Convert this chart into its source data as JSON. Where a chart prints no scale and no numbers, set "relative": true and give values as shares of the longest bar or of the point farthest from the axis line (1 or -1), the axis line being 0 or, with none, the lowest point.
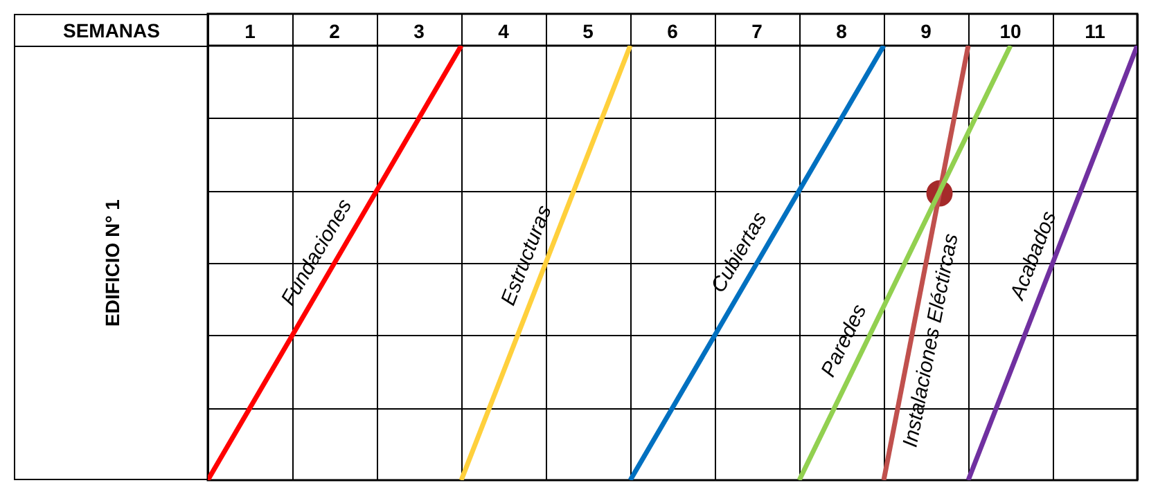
{
  "chart_data": {
    "type": "line",
    "xlabel": "SEMANAS",
    "annotations": [
      "EDIFICIO N° 1"
    ],
    "relative": true,
    "grid": true,
    "line_style": "solid",
    "xlim": [
      0,
      11
    ],
    "xticks": [
      {
        "value": 0,
        "label": null
      },
      {
        "value": 0.5,
        "label": "1"
      },
      {
        "value": 1,
        "label": null
      },
      {
        "value": 1.5,
        "label": "2"
      },
      {
        "value": 2,
        "label": null
      },
      {
        "value": 2.5,
        "label": "3"
      },
      {
        "value": 3,
        "label": null
      },
      {
        "value": 3.5,
        "label": "4"
      },
      {
        "value": 4,
        "label": null
      },
      {
        "value": 4.5,
        "label": "5"
      },
      {
        "value": 5,
        "label": null
      },
      {
        "value": 5.5,
        "label": "6"
      },
      {
        "value": 6,
        "label": null
      },
      {
        "value": 6.5,
        "label": "7"
      },
      {
        "value": 7,
        "label": null
      },
      {
        "value": 7.5,
        "label": "8"
      },
      {
        "value": 8,
        "label": null
      },
      {
        "value": 8.5,
        "label": "9"
      },
      {
        "value": 9,
        "label": null
      },
      {
        "value": 9.5,
        "label": "10"
      },
      {
        "value": 10,
        "label": null
      },
      {
        "value": 10.5,
        "label": "11"
      },
      {
        "value": 11,
        "label": null
      }
    ],
    "series": [
      {
        "name": "Fundaciones",
        "color": "#ff0000",
        "x": [
          0,
          3
        ],
        "values": [
          0,
          1
        ]
      },
      {
        "name": "Estructuras",
        "color": "#ffd03c",
        "x": [
          3,
          5
        ],
        "values": [
          0,
          1
        ]
      },
      {
        "name": "Cubiertas",
        "color": "#0070c0",
        "x": [
          5,
          8
        ],
        "values": [
          0,
          1
        ]
      },
      {
        "name": "Paredes",
        "color": "#92d050",
        "x": [
          7,
          9.5
        ],
        "values": [
          0,
          1
        ]
      },
      {
        "name": "Instalaciones Eléctircas",
        "color": "#c0504d",
        "x": [
          8,
          9
        ],
        "values": [
          0,
          1
        ]
      },
      {
        "name": "Acabados",
        "color": "#7030a0",
        "x": [
          9,
          11
        ],
        "values": [
          0,
          1
        ]
      },
      {
        "type": "scatter",
        "color": "#a52a2a",
        "x": [
          8.66
        ],
        "values": [
          0.66
        ]
      }
    ]
  }
}
